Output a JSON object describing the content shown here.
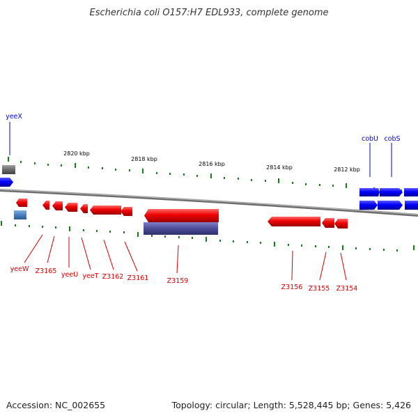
{
  "header": {
    "title": "Escherichia coli O157:H7 EDL933, complete genome"
  },
  "footer": {
    "accession": "Accession: NC_002655",
    "summary": "Topology: circular; Length: 5,528,445 bp; Genes: 5,426"
  },
  "scale": {
    "labels": [
      "2820 kbp",
      "2818 kbp",
      "2816 kbp",
      "2814 kbp",
      "2812 kbp"
    ]
  },
  "colors": {
    "forward_gene": "#0000ff",
    "reverse_gene": "#ee0000",
    "rna": "#6a6a6a",
    "misc_feature_top": "#4a7fc0",
    "misc_feature_bottom": "#4d4d99",
    "backbone": "#888888",
    "tick": "#1a7a1a"
  },
  "genes": {
    "forward": [
      "yeeX",
      "cobU",
      "cobS"
    ],
    "reverse": [
      "yeeW",
      "Z3165",
      "yeeU",
      "yeeT",
      "Z3162",
      "Z3161",
      "Z3159",
      "Z3156",
      "Z3155",
      "Z3154"
    ]
  }
}
